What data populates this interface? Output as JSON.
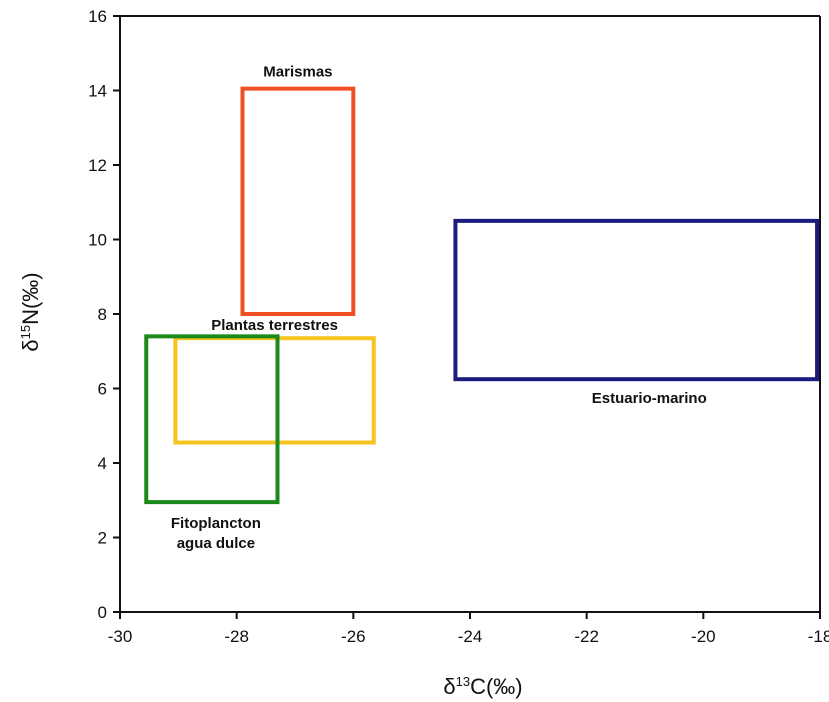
{
  "chart_data": {
    "type": "rectangle-regions",
    "xaxis": {
      "label_prefix": "δ",
      "label_sup": "13",
      "label_suffix": "C(‰)",
      "range": [
        -30,
        -18
      ],
      "ticks": [
        "-30",
        "-28",
        "-26",
        "-24",
        "-22",
        "-20",
        "-18"
      ],
      "tick_values": [
        -30,
        -28,
        -26,
        -24,
        -22,
        -20,
        -18
      ]
    },
    "yaxis": {
      "label_prefix": "δ",
      "label_sup": "15",
      "label_suffix": "N(‰)",
      "range": [
        0,
        16
      ],
      "ticks": [
        "0",
        "2",
        "4",
        "6",
        "8",
        "10",
        "12",
        "14",
        "16"
      ],
      "tick_values": [
        0,
        2,
        4,
        6,
        8,
        10,
        12,
        14,
        16
      ]
    },
    "grid": false,
    "regions": [
      {
        "name": "Marismas",
        "label_lines": [
          "Marismas"
        ],
        "x": [
          -27.9,
          -26.0
        ],
        "y": [
          8.0,
          14.05
        ],
        "color": "#f04e23"
      },
      {
        "name": "Plantas terrestres",
        "label_lines": [
          "Plantas terrestres"
        ],
        "x": [
          -29.05,
          -25.65
        ],
        "y": [
          4.55,
          7.35
        ],
        "color": "#f7c31e"
      },
      {
        "name": "Fitoplancton agua dulce",
        "label_lines": [
          "Fitoplancton",
          "agua dulce"
        ],
        "x": [
          -29.55,
          -27.3
        ],
        "y": [
          2.95,
          7.4
        ],
        "color": "#1a8a1a"
      },
      {
        "name": "Estuario-marino",
        "label_lines": [
          "Estuario-marino"
        ],
        "x": [
          -24.25,
          -18.05
        ],
        "y": [
          6.25,
          10.5
        ],
        "color": "#1c1c7e"
      }
    ]
  }
}
